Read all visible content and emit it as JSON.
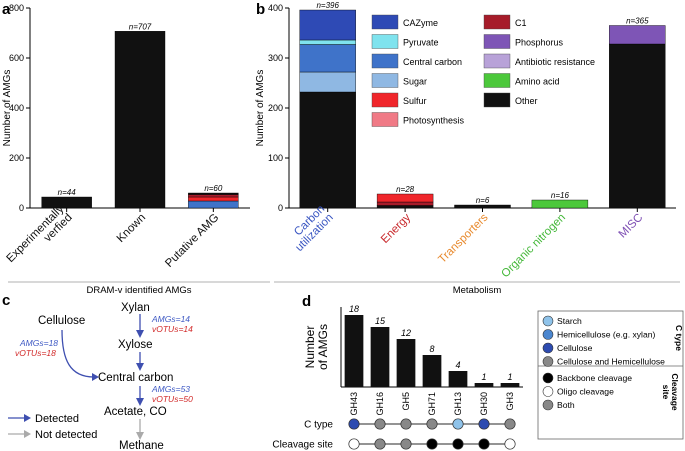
{
  "chart_data": [
    {
      "panel": "a",
      "type": "bar",
      "ylabel": "Number of AMGs",
      "xlabel": "DRAM-v identified AMGs",
      "ylim": [
        0,
        800
      ],
      "yticks": [
        0,
        200,
        400,
        600,
        800
      ],
      "categories": [
        "Experimentally verfied",
        "Known",
        "Putative AMG"
      ],
      "count_labels": [
        "n=44",
        "n=707",
        "n=60"
      ],
      "segments": [
        [
          {
            "class": "Other",
            "value": 44
          }
        ],
        [
          {
            "class": "Other",
            "value": 707
          }
        ],
        [
          {
            "class": "Central carbon",
            "value": 28
          },
          {
            "class": "Sulfur",
            "value": 16
          },
          {
            "class": "C1",
            "value": 10
          },
          {
            "class": "Other",
            "value": 6
          }
        ]
      ]
    },
    {
      "panel": "b",
      "type": "bar",
      "ylabel": "Number of AMGs",
      "xlabel": "Metabolism",
      "ylim": [
        0,
        400
      ],
      "yticks": [
        0,
        100,
        200,
        300,
        400
      ],
      "categories": [
        "Carbon utilization",
        "Energy",
        "Transporters",
        "Organic nitrogen",
        "MISC"
      ],
      "category_colors": [
        "#3a56c2",
        "#c8282b",
        "#e88a2e",
        "#45b83a",
        "#7e4fb4"
      ],
      "count_labels": [
        "n=396",
        "n=28",
        "n=6",
        "n=16",
        "n=365"
      ],
      "segments": [
        [
          {
            "class": "Other",
            "value": 232
          },
          {
            "class": "Sugar",
            "value": 40
          },
          {
            "class": "Central carbon",
            "value": 55
          },
          {
            "class": "Pyruvate",
            "value": 9
          },
          {
            "class": "CAZyme",
            "value": 60
          }
        ],
        [
          {
            "class": "Other",
            "value": 5
          },
          {
            "class": "C1",
            "value": 7
          },
          {
            "class": "Sulfur",
            "value": 16
          }
        ],
        [
          {
            "class": "Other",
            "value": 6
          }
        ],
        [
          {
            "class": "Amino acid",
            "value": 16
          }
        ],
        [
          {
            "class": "Other",
            "value": 328
          },
          {
            "class": "Phosphorus",
            "value": 37
          }
        ]
      ],
      "legend": [
        {
          "label": "CAZyme",
          "color": "#2e4ab5"
        },
        {
          "label": "Pyruvate",
          "color": "#7fe3ee"
        },
        {
          "label": "Central carbon",
          "color": "#3f73c9"
        },
        {
          "label": "Sugar",
          "color": "#8fb8e3"
        },
        {
          "label": "Sulfur",
          "color": "#f0262b"
        },
        {
          "label": "Photosynthesis",
          "color": "#f07a86"
        },
        {
          "label": "C1",
          "color": "#a61c2a"
        },
        {
          "label": "Phosphorus",
          "color": "#7e55b6"
        },
        {
          "label": "Antibiotic resistance",
          "color": "#b8a2d8"
        },
        {
          "label": "Amino acid",
          "color": "#4cc83b"
        },
        {
          "label": "Other",
          "color": "#111111"
        }
      ]
    },
    {
      "panel": "d",
      "type": "bar",
      "ylabel_lines": [
        "Number",
        "of AMGs"
      ],
      "ylim": [
        0,
        20
      ],
      "categories": [
        "GH43",
        "GH16",
        "GH5",
        "GH71",
        "GH13",
        "GH30",
        "GH3"
      ],
      "values": [
        18,
        15,
        12,
        8,
        4,
        1,
        1
      ],
      "c_type": [
        "Cellulose",
        "Cellulose and Hemicellulose",
        "Cellulose and Hemicellulose",
        "Cellulose and Hemicellulose",
        "Starch",
        "Cellulose",
        "Cellulose and Hemicellulose"
      ],
      "cleavage_site": [
        "Oligo cleavage",
        "Both",
        "Both",
        "Backbone cleavage",
        "Backbone cleavage",
        "Backbone cleavage",
        "Oligo cleavage"
      ],
      "row_labels": [
        "C type",
        "Cleavage site"
      ],
      "legend_ctype_title": "C type",
      "legend_ctype": [
        {
          "label": "Starch",
          "color": "#8fc3ea"
        },
        {
          "label": "Hemicellulose (e.g. xylan)",
          "color": "#4a86cf"
        },
        {
          "label": "Cellulose",
          "color": "#2d4bb0"
        },
        {
          "label": "Cellulose and Hemicellulose",
          "color": "#888888"
        }
      ],
      "legend_cleave_title_lines": [
        "Cleavage",
        "site"
      ],
      "legend_cleave": [
        {
          "label": "Backbone cleavage",
          "color": "#000000"
        },
        {
          "label": "Oligo cleavage",
          "color": "#ffffff"
        },
        {
          "label": "Both",
          "color": "#888888"
        }
      ]
    }
  ],
  "class_colors": {
    "CAZyme": "#2e4ab5",
    "Pyruvate": "#7fe3ee",
    "Central carbon": "#3f73c9",
    "Sugar": "#8fb8e3",
    "Sulfur": "#f0262b",
    "Photosynthesis": "#f07a86",
    "C1": "#a61c2a",
    "Phosphorus": "#7e55b6",
    "Antibiotic resistance": "#b8a2d8",
    "Amino acid": "#4cc83b",
    "Other": "#111111"
  },
  "panels": {
    "a": "a",
    "b": "b",
    "c": "c",
    "d": "d"
  },
  "pathway": {
    "cellulose": "Cellulose",
    "xylan": "Xylan",
    "xylose": "Xylose",
    "central_carbon": "Central carbon",
    "acetate": "Acetate, CO",
    "methane": "Methane",
    "amgs_xylan": "AMGs=14",
    "votus_xylan": "vOTUs=14",
    "amgs_cellulose": "AMGs=18",
    "votus_cellulose": "vOTUs=18",
    "amgs_central": "AMGs=53",
    "votus_central": "vOTUs=50",
    "legend_detected": "Detected",
    "legend_not_detected": "Not detected",
    "detected_color": "#3e4fb0",
    "not_detected_color": "#aaaaaa",
    "amgs_color": "#3e59c4",
    "votus_color": "#d22a2a"
  }
}
